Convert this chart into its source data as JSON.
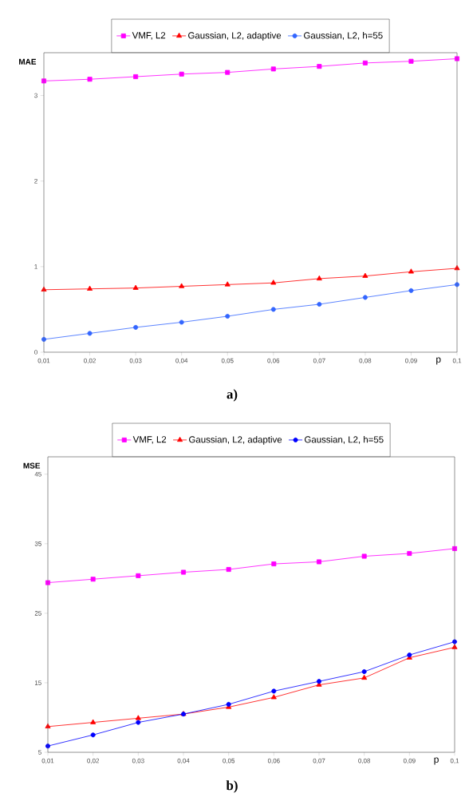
{
  "chart_data": [
    {
      "type": "line",
      "ylabel": "MAE",
      "xlabel": "p",
      "annotations": [
        "a)"
      ],
      "x": [
        0.01,
        0.02,
        0.03,
        0.04,
        0.05,
        0.06,
        0.07,
        0.08,
        0.09,
        0.1
      ],
      "xlim": [
        0.01,
        0.1
      ],
      "ylim": [
        0,
        3.5
      ],
      "xticks": [
        {
          "value": 0.01,
          "label": "0,01"
        },
        {
          "value": 0.02,
          "label": "0,02"
        },
        {
          "value": 0.03,
          "label": "0,03"
        },
        {
          "value": 0.04,
          "label": "0,04"
        },
        {
          "value": 0.05,
          "label": "0,05"
        },
        {
          "value": 0.06,
          "label": "0,06"
        },
        {
          "value": 0.07,
          "label": "0,07"
        },
        {
          "value": 0.08,
          "label": "0,08"
        },
        {
          "value": 0.09,
          "label": "0,09"
        },
        {
          "value": 0.1,
          "label": "0,1"
        }
      ],
      "yticks": [
        0,
        1,
        2,
        3
      ],
      "grid": false,
      "legend": "top",
      "series": [
        {
          "name": "VMF, L2",
          "color": "#ff00ff",
          "marker": "square",
          "values": [
            3.17,
            3.19,
            3.22,
            3.25,
            3.27,
            3.31,
            3.34,
            3.38,
            3.4,
            3.43
          ]
        },
        {
          "name": "Gaussian, L2, adaptive",
          "color": "#ff0000",
          "marker": "triangle",
          "values": [
            0.73,
            0.74,
            0.75,
            0.77,
            0.79,
            0.81,
            0.86,
            0.89,
            0.94,
            0.98
          ]
        },
        {
          "name": "Gaussian, L2, h=55",
          "color": "#3366ff",
          "marker": "circle",
          "values": [
            0.15,
            0.22,
            0.29,
            0.35,
            0.42,
            0.5,
            0.56,
            0.64,
            0.72,
            0.79
          ]
        }
      ]
    },
    {
      "type": "line",
      "ylabel": "MSE",
      "xlabel": "p",
      "annotations": [
        "b)"
      ],
      "x": [
        0.01,
        0.02,
        0.03,
        0.04,
        0.05,
        0.06,
        0.07,
        0.08,
        0.09,
        0.1
      ],
      "xlim": [
        0.01,
        0.1
      ],
      "ylim": [
        5,
        47.5
      ],
      "xticks": [
        {
          "value": 0.01,
          "label": "0,01"
        },
        {
          "value": 0.02,
          "label": "0,02"
        },
        {
          "value": 0.03,
          "label": "0,03"
        },
        {
          "value": 0.04,
          "label": "0,04"
        },
        {
          "value": 0.05,
          "label": "0,05"
        },
        {
          "value": 0.06,
          "label": "0,06"
        },
        {
          "value": 0.07,
          "label": "0,07"
        },
        {
          "value": 0.08,
          "label": "0,08"
        },
        {
          "value": 0.09,
          "label": "0,09"
        },
        {
          "value": 0.1,
          "label": "0,1"
        }
      ],
      "yticks": [
        5,
        15,
        25,
        35,
        45
      ],
      "grid": false,
      "legend": "top",
      "series": [
        {
          "name": "VMF, L2",
          "color": "#ff00ff",
          "marker": "square",
          "values": [
            29.4,
            29.9,
            30.4,
            30.9,
            31.3,
            32.1,
            32.4,
            33.2,
            33.6,
            34.3
          ]
        },
        {
          "name": "Gaussian, L2, adaptive",
          "color": "#ff0000",
          "marker": "triangle",
          "values": [
            8.7,
            9.3,
            9.9,
            10.5,
            11.5,
            12.9,
            14.7,
            15.7,
            18.6,
            20.1
          ]
        },
        {
          "name": "Gaussian, L2, h=55",
          "color": "#0000ff",
          "marker": "circle",
          "values": [
            5.9,
            7.5,
            9.3,
            10.5,
            11.9,
            13.8,
            15.2,
            16.6,
            19.0,
            20.9
          ]
        }
      ]
    }
  ]
}
